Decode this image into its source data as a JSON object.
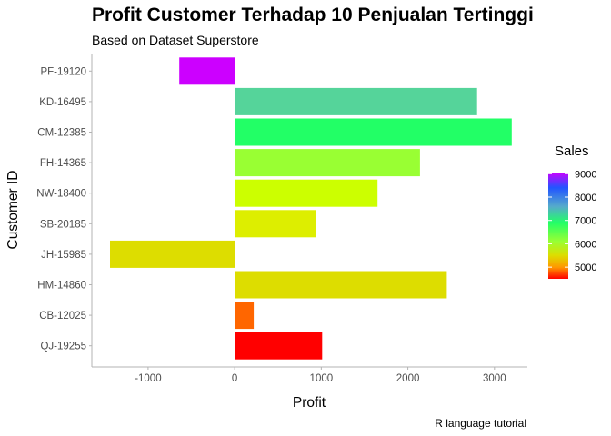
{
  "chart_data": {
    "type": "bar",
    "orientation": "horizontal",
    "title": "Profit Customer Terhadap 10 Penjualan Tertinggi",
    "subtitle": "Based on Dataset Superstore",
    "caption": "R language tutorial",
    "xlabel": "Profit",
    "ylabel": "Customer ID",
    "xlim": [
      -1650,
      3380
    ],
    "x_ticks": [
      -1000,
      0,
      1000,
      2000,
      3000
    ],
    "x_tick_labels": [
      "-1000",
      "0",
      "1000",
      "2000",
      "3000"
    ],
    "grid": false,
    "categories": [
      "PF-19120",
      "KD-16495",
      "CM-12385",
      "FH-14365",
      "NW-18400",
      "SB-20185",
      "JH-15985",
      "HM-14860",
      "CB-12025",
      "QJ-19255"
    ],
    "profit": [
      -640,
      2800,
      3200,
      2140,
      1650,
      940,
      -1440,
      2450,
      220,
      1010
    ],
    "sales": [
      9000,
      6500,
      6200,
      5850,
      5650,
      5400,
      5350,
      5300,
      4800,
      4550
    ],
    "bar_colors": [
      "#cc00ff",
      "#55d49a",
      "#22ff66",
      "#99ff33",
      "#ccff00",
      "#ddee00",
      "#dddd00",
      "#dddd00",
      "#ff6600",
      "#ff0000"
    ],
    "legend": {
      "title": "Sales",
      "placement": "right",
      "labels": [
        "9000",
        "8000",
        "7000",
        "6000",
        "5000"
      ],
      "values": [
        9000,
        8000,
        7000,
        6000,
        5000
      ],
      "range": [
        4500,
        9050
      ],
      "gradient_stops": [
        {
          "value": 9050,
          "color": "#cc00ff"
        },
        {
          "value": 8400,
          "color": "#2255ff"
        },
        {
          "value": 7600,
          "color": "#55aacc"
        },
        {
          "value": 6900,
          "color": "#22ff66"
        },
        {
          "value": 6100,
          "color": "#99ff33"
        },
        {
          "value": 5500,
          "color": "#dddd00"
        },
        {
          "value": 5000,
          "color": "#ff9900"
        },
        {
          "value": 4500,
          "color": "#ff0000"
        }
      ]
    }
  }
}
